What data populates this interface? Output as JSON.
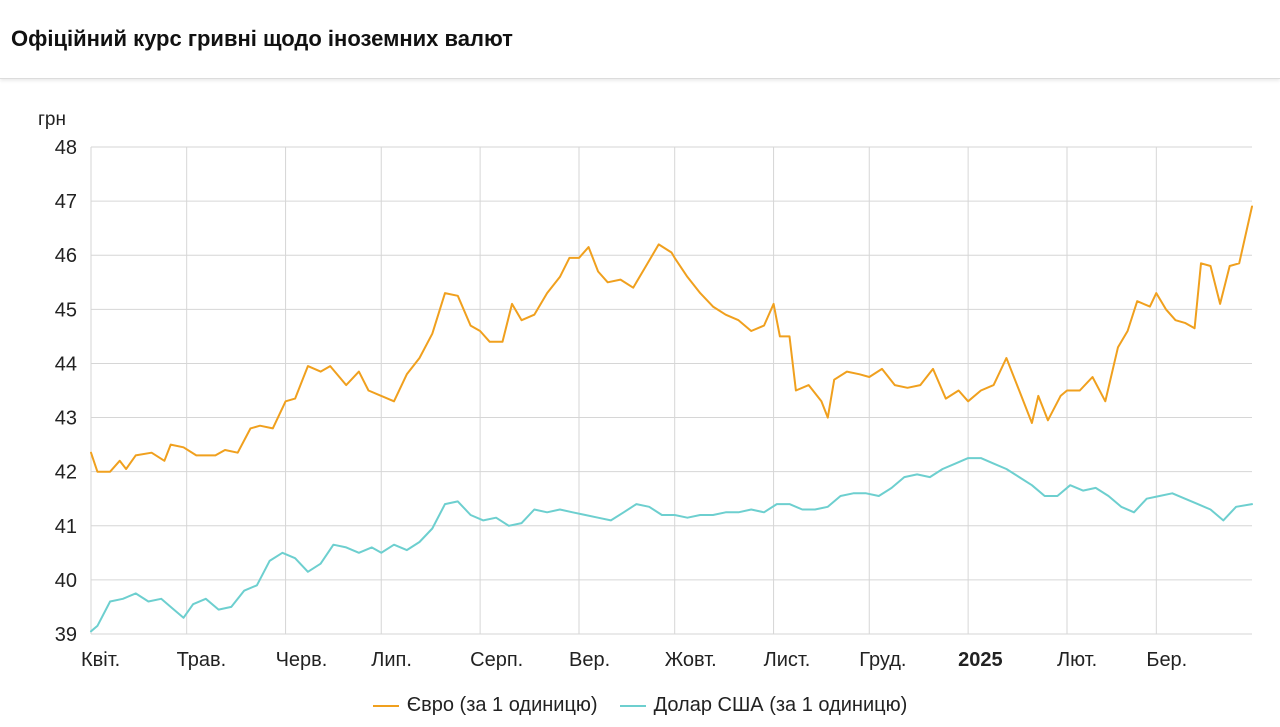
{
  "header": {
    "title": "Офіційний курс гривні щодо іноземних валют"
  },
  "colors": {
    "euro": "#f0a01e",
    "usd": "#6dcfcf",
    "grid": "#d6d6d6"
  },
  "chart_data": {
    "type": "line",
    "ylabel": "грн",
    "ylim": [
      39,
      48
    ],
    "yticks": [
      "48",
      "47",
      "46",
      "45",
      "44",
      "43",
      "42",
      "41",
      "40",
      "39"
    ],
    "x_range": [
      "2024-04-01",
      "2025-03-31"
    ],
    "x_ticks": [
      {
        "label": "Квіт.",
        "date": "2024-04-01",
        "bold": false
      },
      {
        "label": "Трав.",
        "date": "2024-05-01",
        "bold": false
      },
      {
        "label": "Черв.",
        "date": "2024-06-01",
        "bold": false
      },
      {
        "label": "Лип.",
        "date": "2024-07-01",
        "bold": false
      },
      {
        "label": "Серп.",
        "date": "2024-08-01",
        "bold": false
      },
      {
        "label": "Вер.",
        "date": "2024-09-01",
        "bold": false
      },
      {
        "label": "Жовт.",
        "date": "2024-10-01",
        "bold": false
      },
      {
        "label": "Лист.",
        "date": "2024-11-01",
        "bold": false
      },
      {
        "label": "Груд.",
        "date": "2024-12-01",
        "bold": false
      },
      {
        "label": "2025",
        "date": "2025-01-01",
        "bold": true
      },
      {
        "label": "Лют.",
        "date": "2025-02-01",
        "bold": false
      },
      {
        "label": "Бер.",
        "date": "2025-03-01",
        "bold": false
      }
    ],
    "grid": true,
    "legend_position": "bottom-center",
    "series": [
      {
        "name": "Євро (за 1 одиницю)",
        "color": "#f0a01e",
        "points": [
          [
            "2024-04-01",
            42.35
          ],
          [
            "2024-04-03",
            42.0
          ],
          [
            "2024-04-07",
            42.0
          ],
          [
            "2024-04-10",
            42.2
          ],
          [
            "2024-04-12",
            42.05
          ],
          [
            "2024-04-15",
            42.3
          ],
          [
            "2024-04-20",
            42.35
          ],
          [
            "2024-04-24",
            42.2
          ],
          [
            "2024-04-26",
            42.5
          ],
          [
            "2024-04-30",
            42.45
          ],
          [
            "2024-05-04",
            42.3
          ],
          [
            "2024-05-10",
            42.3
          ],
          [
            "2024-05-13",
            42.4
          ],
          [
            "2024-05-17",
            42.35
          ],
          [
            "2024-05-21",
            42.8
          ],
          [
            "2024-05-24",
            42.85
          ],
          [
            "2024-05-28",
            42.8
          ],
          [
            "2024-06-01",
            43.3
          ],
          [
            "2024-06-04",
            43.35
          ],
          [
            "2024-06-08",
            43.95
          ],
          [
            "2024-06-12",
            43.85
          ],
          [
            "2024-06-15",
            43.95
          ],
          [
            "2024-06-20",
            43.6
          ],
          [
            "2024-06-24",
            43.85
          ],
          [
            "2024-06-27",
            43.5
          ],
          [
            "2024-07-01",
            43.4
          ],
          [
            "2024-07-05",
            43.3
          ],
          [
            "2024-07-09",
            43.8
          ],
          [
            "2024-07-13",
            44.1
          ],
          [
            "2024-07-17",
            44.55
          ],
          [
            "2024-07-21",
            45.3
          ],
          [
            "2024-07-25",
            45.25
          ],
          [
            "2024-07-29",
            44.7
          ],
          [
            "2024-08-01",
            44.6
          ],
          [
            "2024-08-04",
            44.4
          ],
          [
            "2024-08-08",
            44.4
          ],
          [
            "2024-08-11",
            45.1
          ],
          [
            "2024-08-14",
            44.8
          ],
          [
            "2024-08-18",
            44.9
          ],
          [
            "2024-08-22",
            45.3
          ],
          [
            "2024-08-26",
            45.6
          ],
          [
            "2024-08-29",
            45.95
          ],
          [
            "2024-09-01",
            45.95
          ],
          [
            "2024-09-04",
            46.15
          ],
          [
            "2024-09-07",
            45.7
          ],
          [
            "2024-09-10",
            45.5
          ],
          [
            "2024-09-14",
            45.55
          ],
          [
            "2024-09-18",
            45.4
          ],
          [
            "2024-09-22",
            45.8
          ],
          [
            "2024-09-26",
            46.2
          ],
          [
            "2024-09-30",
            46.05
          ],
          [
            "2024-10-01",
            45.95
          ],
          [
            "2024-10-05",
            45.6
          ],
          [
            "2024-10-09",
            45.3
          ],
          [
            "2024-10-13",
            45.05
          ],
          [
            "2024-10-17",
            44.9
          ],
          [
            "2024-10-21",
            44.8
          ],
          [
            "2024-10-25",
            44.6
          ],
          [
            "2024-10-29",
            44.7
          ],
          [
            "2024-11-01",
            45.1
          ],
          [
            "2024-11-03",
            44.5
          ],
          [
            "2024-11-06",
            44.5
          ],
          [
            "2024-11-08",
            43.5
          ],
          [
            "2024-11-12",
            43.6
          ],
          [
            "2024-11-16",
            43.3
          ],
          [
            "2024-11-18",
            43.0
          ],
          [
            "2024-11-20",
            43.7
          ],
          [
            "2024-11-24",
            43.85
          ],
          [
            "2024-11-28",
            43.8
          ],
          [
            "2024-12-01",
            43.75
          ],
          [
            "2024-12-05",
            43.9
          ],
          [
            "2024-12-09",
            43.6
          ],
          [
            "2024-12-13",
            43.55
          ],
          [
            "2024-12-17",
            43.6
          ],
          [
            "2024-12-21",
            43.9
          ],
          [
            "2024-12-25",
            43.35
          ],
          [
            "2024-12-29",
            43.5
          ],
          [
            "2025-01-01",
            43.3
          ],
          [
            "2025-01-05",
            43.5
          ],
          [
            "2025-01-09",
            43.6
          ],
          [
            "2025-01-13",
            44.1
          ],
          [
            "2025-01-17",
            43.5
          ],
          [
            "2025-01-21",
            42.9
          ],
          [
            "2025-01-23",
            43.4
          ],
          [
            "2025-01-26",
            42.95
          ],
          [
            "2025-01-30",
            43.4
          ],
          [
            "2025-02-01",
            43.5
          ],
          [
            "2025-02-05",
            43.5
          ],
          [
            "2025-02-09",
            43.75
          ],
          [
            "2025-02-13",
            43.3
          ],
          [
            "2025-02-17",
            44.3
          ],
          [
            "2025-02-20",
            44.6
          ],
          [
            "2025-02-23",
            45.15
          ],
          [
            "2025-02-27",
            45.05
          ],
          [
            "2025-03-01",
            45.3
          ],
          [
            "2025-03-04",
            45.0
          ],
          [
            "2025-03-07",
            44.8
          ],
          [
            "2025-03-10",
            44.75
          ],
          [
            "2025-03-13",
            44.65
          ],
          [
            "2025-03-15",
            45.85
          ],
          [
            "2025-03-18",
            45.8
          ],
          [
            "2025-03-21",
            45.1
          ],
          [
            "2025-03-24",
            45.8
          ],
          [
            "2025-03-27",
            45.85
          ],
          [
            "2025-03-31",
            46.9
          ]
        ]
      },
      {
        "name": "Долар США (за 1 одиницю)",
        "color": "#6dcfcf",
        "points": [
          [
            "2024-04-01",
            39.05
          ],
          [
            "2024-04-03",
            39.15
          ],
          [
            "2024-04-07",
            39.6
          ],
          [
            "2024-04-11",
            39.65
          ],
          [
            "2024-04-15",
            39.75
          ],
          [
            "2024-04-19",
            39.6
          ],
          [
            "2024-04-23",
            39.65
          ],
          [
            "2024-04-27",
            39.45
          ],
          [
            "2024-04-30",
            39.3
          ],
          [
            "2024-05-03",
            39.55
          ],
          [
            "2024-05-07",
            39.65
          ],
          [
            "2024-05-11",
            39.45
          ],
          [
            "2024-05-15",
            39.5
          ],
          [
            "2024-05-19",
            39.8
          ],
          [
            "2024-05-23",
            39.9
          ],
          [
            "2024-05-27",
            40.35
          ],
          [
            "2024-05-31",
            40.5
          ],
          [
            "2024-06-04",
            40.4
          ],
          [
            "2024-06-08",
            40.15
          ],
          [
            "2024-06-12",
            40.3
          ],
          [
            "2024-06-16",
            40.65
          ],
          [
            "2024-06-20",
            40.6
          ],
          [
            "2024-06-24",
            40.5
          ],
          [
            "2024-06-28",
            40.6
          ],
          [
            "2024-07-01",
            40.5
          ],
          [
            "2024-07-05",
            40.65
          ],
          [
            "2024-07-09",
            40.55
          ],
          [
            "2024-07-13",
            40.7
          ],
          [
            "2024-07-17",
            40.95
          ],
          [
            "2024-07-21",
            41.4
          ],
          [
            "2024-07-25",
            41.45
          ],
          [
            "2024-07-29",
            41.2
          ],
          [
            "2024-08-02",
            41.1
          ],
          [
            "2024-08-06",
            41.15
          ],
          [
            "2024-08-10",
            41.0
          ],
          [
            "2024-08-14",
            41.05
          ],
          [
            "2024-08-18",
            41.3
          ],
          [
            "2024-08-22",
            41.25
          ],
          [
            "2024-08-26",
            41.3
          ],
          [
            "2024-08-30",
            41.25
          ],
          [
            "2024-09-03",
            41.2
          ],
          [
            "2024-09-07",
            41.15
          ],
          [
            "2024-09-11",
            41.1
          ],
          [
            "2024-09-15",
            41.25
          ],
          [
            "2024-09-19",
            41.4
          ],
          [
            "2024-09-23",
            41.35
          ],
          [
            "2024-09-27",
            41.2
          ],
          [
            "2024-10-01",
            41.2
          ],
          [
            "2024-10-05",
            41.15
          ],
          [
            "2024-10-09",
            41.2
          ],
          [
            "2024-10-13",
            41.2
          ],
          [
            "2024-10-17",
            41.25
          ],
          [
            "2024-10-21",
            41.25
          ],
          [
            "2024-10-25",
            41.3
          ],
          [
            "2024-10-29",
            41.25
          ],
          [
            "2024-11-02",
            41.4
          ],
          [
            "2024-11-06",
            41.4
          ],
          [
            "2024-11-10",
            41.3
          ],
          [
            "2024-11-14",
            41.3
          ],
          [
            "2024-11-18",
            41.35
          ],
          [
            "2024-11-22",
            41.55
          ],
          [
            "2024-11-26",
            41.6
          ],
          [
            "2024-11-30",
            41.6
          ],
          [
            "2024-12-04",
            41.55
          ],
          [
            "2024-12-08",
            41.7
          ],
          [
            "2024-12-12",
            41.9
          ],
          [
            "2024-12-16",
            41.95
          ],
          [
            "2024-12-20",
            41.9
          ],
          [
            "2024-12-24",
            42.05
          ],
          [
            "2024-12-28",
            42.15
          ],
          [
            "2025-01-01",
            42.25
          ],
          [
            "2025-01-05",
            42.25
          ],
          [
            "2025-01-09",
            42.15
          ],
          [
            "2025-01-13",
            42.05
          ],
          [
            "2025-01-17",
            41.9
          ],
          [
            "2025-01-21",
            41.75
          ],
          [
            "2025-01-25",
            41.55
          ],
          [
            "2025-01-29",
            41.55
          ],
          [
            "2025-02-02",
            41.75
          ],
          [
            "2025-02-06",
            41.65
          ],
          [
            "2025-02-10",
            41.7
          ],
          [
            "2025-02-14",
            41.55
          ],
          [
            "2025-02-18",
            41.35
          ],
          [
            "2025-02-22",
            41.25
          ],
          [
            "2025-02-26",
            41.5
          ],
          [
            "2025-03-02",
            41.55
          ],
          [
            "2025-03-06",
            41.6
          ],
          [
            "2025-03-10",
            41.5
          ],
          [
            "2025-03-14",
            41.4
          ],
          [
            "2025-03-18",
            41.3
          ],
          [
            "2025-03-22",
            41.1
          ],
          [
            "2025-03-26",
            41.35
          ],
          [
            "2025-03-31",
            41.4
          ]
        ]
      }
    ]
  }
}
